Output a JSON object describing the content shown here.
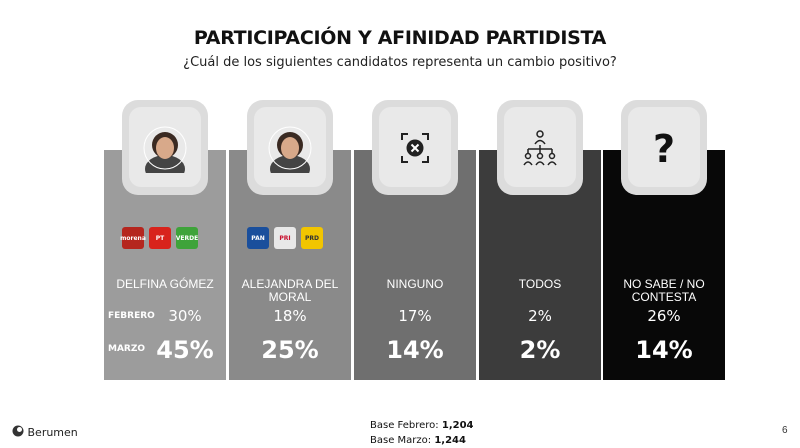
{
  "header": {
    "title": "PARTICIPACIÓN Y AFINIDAD PARTIDISTA",
    "subtitle": "¿Cuál de los siguientes candidatos representa un cambio positivo?"
  },
  "row_labels": {
    "feb": "FEBRERO",
    "mar": "MARZO"
  },
  "chart_data": {
    "type": "table",
    "title": "PARTICIPACIÓN Y AFINIDAD PARTIDISTA",
    "subtitle": "¿Cuál de los siguientes candidatos representa un cambio positivo?",
    "categories": [
      "DELFINA GÓMEZ",
      "ALEJANDRA DEL MORAL",
      "NINGUNO",
      "TODOS",
      "NO SABE / NO CONTESTA"
    ],
    "series": [
      {
        "name": "FEBRERO",
        "values": [
          30,
          18,
          17,
          2,
          26
        ],
        "labels": [
          "30%",
          "18%",
          "17%",
          "2%",
          "26%"
        ]
      },
      {
        "name": "MARZO",
        "values": [
          45,
          25,
          14,
          2,
          14
        ],
        "labels": [
          "45%",
          "25%",
          "14%",
          "2%",
          "14%"
        ]
      }
    ]
  },
  "cards": [
    {
      "name_lines": [
        "DELFINA GÓMEZ"
      ],
      "bg": "#9c9c9c",
      "icon": "woman-portrait-icon",
      "logos": [
        {
          "text": "morena",
          "color": "#b5261e"
        },
        {
          "text": "PT",
          "color": "#d8231c"
        },
        {
          "text": "VERDE",
          "color": "#3ea33a"
        }
      ]
    },
    {
      "name_lines": [
        "ALEJANDRA DEL",
        "MORAL"
      ],
      "bg": "#8a8a8a",
      "icon": "woman-portrait-icon",
      "logos": [
        {
          "text": "PAN",
          "color": "#1a4f9c"
        },
        {
          "text": "PRI",
          "color": "#e8e8e8"
        },
        {
          "text": "PRD",
          "color": "#f2c500"
        }
      ]
    },
    {
      "name_lines": [
        "NINGUNO"
      ],
      "bg": "#6f6f6f",
      "icon": "cancel-x-icon",
      "logos": []
    },
    {
      "name_lines": [
        "TODOS"
      ],
      "bg": "#3c3c3c",
      "icon": "group-people-icon",
      "logos": []
    },
    {
      "name_lines": [
        "NO SABE / NO",
        "CONTESTA"
      ],
      "bg": "#080808",
      "icon": "question-mark-icon",
      "logos": []
    }
  ],
  "footer": {
    "base_feb_label": "Base Febrero:",
    "base_feb_value": "1,204",
    "base_mar_label": "Base Marzo:",
    "base_mar_value": "1,244",
    "brand": "Berumen",
    "page": "6"
  },
  "colors": {
    "card_tab": "#dcdcdc",
    "text_on_card": "#ffffff"
  }
}
